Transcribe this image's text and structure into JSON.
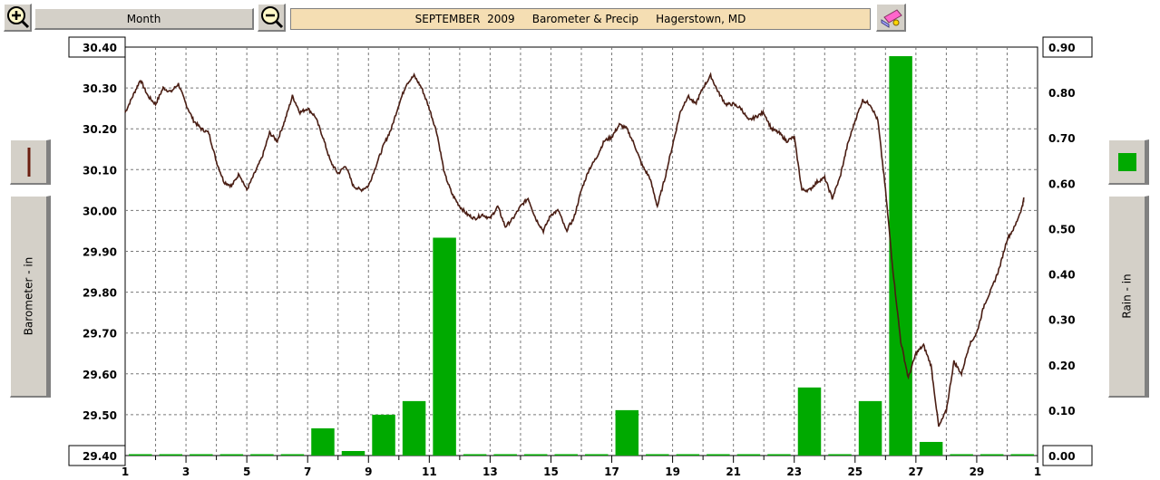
{
  "toolbar": {
    "zoom_in_icon": "magnifier-plus-icon",
    "zoom_out_icon": "magnifier-minus-icon",
    "period_label": "Month",
    "title": "SEPTEMBER  2009     Barometer & Precip     Hagerstown, MD",
    "print_icon": "printer-icon"
  },
  "left_panel": {
    "legend_icon": "brown-line-swatch-icon",
    "axis_label": "Barometer - in"
  },
  "right_panel": {
    "legend_icon": "green-square-swatch-icon",
    "axis_label": "Rain - in"
  },
  "colors": {
    "barometer_line": "#4a1e14",
    "rain_bars": "#00aa00",
    "title_bg": "#f5deb3",
    "button_bg": "#d4d0c8"
  },
  "chart_data": {
    "type": "bar+line",
    "title": "SEPTEMBER  2009     Barometer & Precip     Hagerstown, MD",
    "xlabel": "",
    "x_tick_labels": [
      "1",
      "3",
      "5",
      "7",
      "9",
      "11",
      "13",
      "15",
      "17",
      "19",
      "21",
      "23",
      "25",
      "27",
      "29",
      "1"
    ],
    "xlim_days": [
      1,
      31
    ],
    "grid": true,
    "left_axis": {
      "label": "Barometer - in",
      "ylim": [
        29.4,
        30.4
      ],
      "tick_labels": [
        "30.40",
        "30.30",
        "30.20",
        "30.10",
        "30.00",
        "29.90",
        "29.80",
        "29.70",
        "29.60",
        "29.50",
        "29.40"
      ]
    },
    "right_axis": {
      "label": "Rain - in",
      "ylim": [
        0.0,
        0.9
      ],
      "tick_labels": [
        "0.90",
        "0.80",
        "0.70",
        "0.60",
        "0.50",
        "0.40",
        "0.30",
        "0.20",
        "0.10",
        "0.00"
      ]
    },
    "series": [
      {
        "name": "Barometer - in",
        "axis": "left",
        "kind": "line",
        "points": [
          [
            1.0,
            30.24
          ],
          [
            1.25,
            30.28
          ],
          [
            1.5,
            30.32
          ],
          [
            1.75,
            30.28
          ],
          [
            2.0,
            30.26
          ],
          [
            2.25,
            30.3
          ],
          [
            2.5,
            30.29
          ],
          [
            2.75,
            30.31
          ],
          [
            3.0,
            30.26
          ],
          [
            3.25,
            30.22
          ],
          [
            3.5,
            30.2
          ],
          [
            3.75,
            30.19
          ],
          [
            4.0,
            30.12
          ],
          [
            4.25,
            30.07
          ],
          [
            4.5,
            30.06
          ],
          [
            4.75,
            30.09
          ],
          [
            5.0,
            30.05
          ],
          [
            5.25,
            30.09
          ],
          [
            5.5,
            30.13
          ],
          [
            5.75,
            30.19
          ],
          [
            6.0,
            30.17
          ],
          [
            6.25,
            30.22
          ],
          [
            6.5,
            30.28
          ],
          [
            6.75,
            30.24
          ],
          [
            7.0,
            30.25
          ],
          [
            7.25,
            30.23
          ],
          [
            7.5,
            30.18
          ],
          [
            7.75,
            30.12
          ],
          [
            8.0,
            30.09
          ],
          [
            8.25,
            30.11
          ],
          [
            8.5,
            30.06
          ],
          [
            8.75,
            30.05
          ],
          [
            9.0,
            30.06
          ],
          [
            9.25,
            30.11
          ],
          [
            9.5,
            30.16
          ],
          [
            9.75,
            30.2
          ],
          [
            10.0,
            30.26
          ],
          [
            10.25,
            30.31
          ],
          [
            10.5,
            30.33
          ],
          [
            10.75,
            30.3
          ],
          [
            11.0,
            30.25
          ],
          [
            11.25,
            30.19
          ],
          [
            11.5,
            30.09
          ],
          [
            11.75,
            30.04
          ],
          [
            12.0,
            30.01
          ],
          [
            12.25,
            29.99
          ],
          [
            12.5,
            29.98
          ],
          [
            12.75,
            29.99
          ],
          [
            13.0,
            29.98
          ],
          [
            13.25,
            30.01
          ],
          [
            13.5,
            29.96
          ],
          [
            13.75,
            29.98
          ],
          [
            14.0,
            30.01
          ],
          [
            14.25,
            30.03
          ],
          [
            14.5,
            29.98
          ],
          [
            14.75,
            29.95
          ],
          [
            15.0,
            29.99
          ],
          [
            15.25,
            30.0
          ],
          [
            15.5,
            29.95
          ],
          [
            15.75,
            29.98
          ],
          [
            16.0,
            30.05
          ],
          [
            16.25,
            30.1
          ],
          [
            16.5,
            30.13
          ],
          [
            16.75,
            30.17
          ],
          [
            17.0,
            30.18
          ],
          [
            17.25,
            30.21
          ],
          [
            17.5,
            30.2
          ],
          [
            17.75,
            30.16
          ],
          [
            18.0,
            30.11
          ],
          [
            18.25,
            30.08
          ],
          [
            18.5,
            30.01
          ],
          [
            18.75,
            30.08
          ],
          [
            19.0,
            30.16
          ],
          [
            19.25,
            30.24
          ],
          [
            19.5,
            30.28
          ],
          [
            19.75,
            30.26
          ],
          [
            20.0,
            30.3
          ],
          [
            20.25,
            30.33
          ],
          [
            20.5,
            30.29
          ],
          [
            20.75,
            30.26
          ],
          [
            21.0,
            30.26
          ],
          [
            21.25,
            30.25
          ],
          [
            21.5,
            30.22
          ],
          [
            21.75,
            30.23
          ],
          [
            22.0,
            30.24
          ],
          [
            22.25,
            30.2
          ],
          [
            22.5,
            30.19
          ],
          [
            22.75,
            30.17
          ],
          [
            23.0,
            30.18
          ],
          [
            23.25,
            30.05
          ],
          [
            23.5,
            30.05
          ],
          [
            23.75,
            30.07
          ],
          [
            24.0,
            30.08
          ],
          [
            24.25,
            30.03
          ],
          [
            24.5,
            30.08
          ],
          [
            24.75,
            30.16
          ],
          [
            25.0,
            30.22
          ],
          [
            25.25,
            30.27
          ],
          [
            25.5,
            30.26
          ],
          [
            25.75,
            30.22
          ],
          [
            26.0,
            30.05
          ],
          [
            26.25,
            29.85
          ],
          [
            26.5,
            29.68
          ],
          [
            26.75,
            29.59
          ],
          [
            27.0,
            29.65
          ],
          [
            27.25,
            29.67
          ],
          [
            27.5,
            29.62
          ],
          [
            27.75,
            29.47
          ],
          [
            28.0,
            29.51
          ],
          [
            28.25,
            29.63
          ],
          [
            28.5,
            29.6
          ],
          [
            28.75,
            29.67
          ],
          [
            29.0,
            29.7
          ],
          [
            29.25,
            29.77
          ],
          [
            29.5,
            29.81
          ],
          [
            29.75,
            29.86
          ],
          [
            30.0,
            29.93
          ],
          [
            30.25,
            29.96
          ],
          [
            30.5,
            30.01
          ],
          [
            30.55,
            30.03
          ]
        ]
      },
      {
        "name": "Rain - in",
        "axis": "right",
        "kind": "bar",
        "points": [
          [
            1,
            0.0
          ],
          [
            2,
            0.0
          ],
          [
            3,
            0.0
          ],
          [
            4,
            0.0
          ],
          [
            5,
            0.0
          ],
          [
            6,
            0.0
          ],
          [
            7,
            0.06
          ],
          [
            8,
            0.01
          ],
          [
            9,
            0.09
          ],
          [
            10,
            0.12
          ],
          [
            11,
            0.48
          ],
          [
            12,
            0.0
          ],
          [
            13,
            0.0
          ],
          [
            14,
            0.0
          ],
          [
            15,
            0.0
          ],
          [
            16,
            0.0
          ],
          [
            17,
            0.1
          ],
          [
            18,
            0.0
          ],
          [
            19,
            0.0
          ],
          [
            20,
            0.0
          ],
          [
            21,
            0.0
          ],
          [
            22,
            0.0
          ],
          [
            23,
            0.15
          ],
          [
            24,
            0.0
          ],
          [
            25,
            0.12
          ],
          [
            26,
            0.88
          ],
          [
            27,
            0.03
          ],
          [
            28,
            0.0
          ],
          [
            29,
            0.0
          ],
          [
            30,
            0.0
          ]
        ]
      }
    ]
  }
}
